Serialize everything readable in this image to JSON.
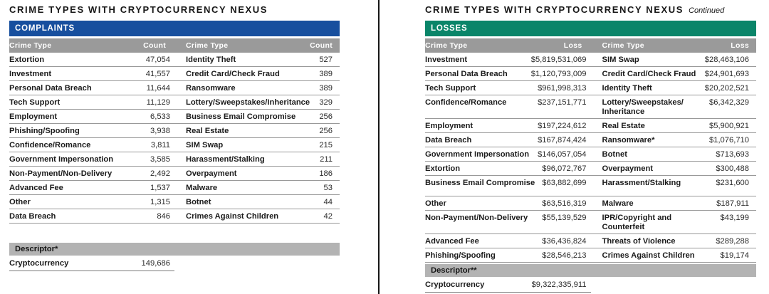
{
  "left_panel": {
    "title": "CRIME TYPES WITH CRYPTOCURRENCY NEXUS",
    "section_label": "COMPLAINTS",
    "col_headers": {
      "crime_type_1": "Crime Type",
      "value_1": "Count",
      "crime_type_2": "Crime Type",
      "value_2": "Count"
    },
    "rows": [
      {
        "c1": "Extortion",
        "v1": "47,054",
        "c2": "Identity Theft",
        "v2": "527"
      },
      {
        "c1": "Investment",
        "v1": "41,557",
        "c2": "Credit Card/Check Fraud",
        "v2": "389"
      },
      {
        "c1": "Personal Data Breach",
        "v1": "11,644",
        "c2": "Ransomware",
        "v2": "389"
      },
      {
        "c1": "Tech Support",
        "v1": "11,129",
        "c2": "Lottery/Sweepstakes/Inheritance",
        "v2": "329"
      },
      {
        "c1": "Employment",
        "v1": "6,533",
        "c2": "Business Email Compromise",
        "v2": "256"
      },
      {
        "c1": "Phishing/Spoofing",
        "v1": "3,938",
        "c2": "Real Estate",
        "v2": "256"
      },
      {
        "c1": "Confidence/Romance",
        "v1": "3,811",
        "c2": "SIM Swap",
        "v2": "215"
      },
      {
        "c1": "Government Impersonation",
        "v1": "3,585",
        "c2": "Harassment/Stalking",
        "v2": "211"
      },
      {
        "c1": "Non-Payment/Non-Delivery",
        "v1": "2,492",
        "c2": "Overpayment",
        "v2": "186"
      },
      {
        "c1": "Advanced Fee",
        "v1": "1,537",
        "c2": "Malware",
        "v2": "53"
      },
      {
        "c1": "Other",
        "v1": "1,315",
        "c2": "Botnet",
        "v2": "44"
      },
      {
        "c1": "Data Breach",
        "v1": "846",
        "c2": "Crimes Against Children",
        "v2": "42"
      }
    ],
    "descriptor_label": "Descriptor*",
    "descriptor": {
      "label": "Cryptocurrency",
      "value": "149,686"
    }
  },
  "right_panel": {
    "title": "CRIME TYPES WITH CRYPTOCURRENCY NEXUS",
    "title_suffix": "Continued",
    "section_label": "LOSSES",
    "col_headers": {
      "crime_type_1": "Crime Type",
      "value_1": "Loss",
      "crime_type_2": "Crime Type",
      "value_2": "Loss"
    },
    "rows": [
      {
        "c1": "Investment",
        "v1": "$5,819,531,069",
        "c2": "SIM Swap",
        "v2": "$28,463,106"
      },
      {
        "c1": "Personal Data Breach",
        "v1": "$1,120,793,009",
        "c2": "Credit Card/Check Fraud",
        "v2": "$24,901,693"
      },
      {
        "c1": "Tech Support",
        "v1": "$961,998,313",
        "c2": "Identity Theft",
        "v2": "$20,202,521"
      },
      {
        "c1": "Confidence/Romance",
        "v1": "$237,151,771",
        "c2": "Lottery/Sweepstakes/\nInheritance",
        "v2": "$6,342,329"
      },
      {
        "c1": "Employment",
        "v1": "$197,224,612",
        "c2": "Real Estate",
        "v2": "$5,900,921"
      },
      {
        "c1": "Data Breach",
        "v1": "$167,874,424",
        "c2": "Ransomware*",
        "v2": "$1,076,710"
      },
      {
        "c1": "Government Impersonation",
        "v1": "$146,057,054",
        "c2": "Botnet",
        "v2": "$713,693"
      },
      {
        "c1": "Extortion",
        "v1": "$96,072,767",
        "c2": "Overpayment",
        "v2": "$300,488"
      },
      {
        "c1": "Business Email Compromise",
        "v1": "$63,882,699",
        "c2": "Harassment/Stalking",
        "v2": "$231,600"
      },
      {
        "c1": "Other",
        "v1": "$63,516,319",
        "c2": "Malware",
        "v2": "$187,911"
      },
      {
        "c1": "Non-Payment/Non-Delivery",
        "v1": "$55,139,529",
        "c2": "IPR/Copyright and\nCounterfeit",
        "v2": "$43,199"
      },
      {
        "c1": "Advanced Fee",
        "v1": "$36,436,824",
        "c2": "Threats of Violence",
        "v2": "$289,288"
      },
      {
        "c1": "Phishing/Spoofing",
        "v1": "$28,546,213",
        "c2": "Crimes Against Children",
        "v2": "$19,174"
      }
    ],
    "descriptor_label": "Descriptor**",
    "descriptor": {
      "label": "Cryptocurrency",
      "value": "$9,322,335,911"
    }
  },
  "colors": {
    "complaints_header_bg": "#174F9E",
    "losses_header_bg": "#0A8569",
    "column_header_bg": "#9A9A9A",
    "descriptor_bg": "#B3B3B3",
    "divider": "#161616"
  }
}
